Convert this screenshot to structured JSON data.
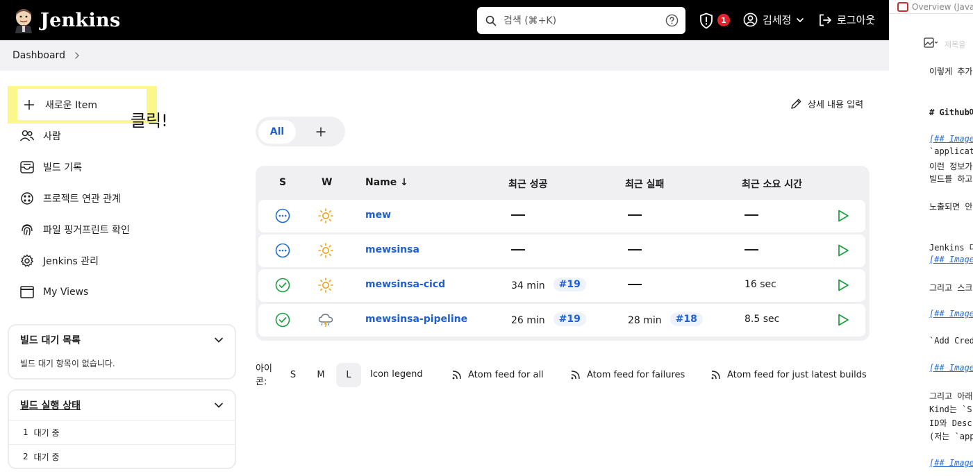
{
  "header": {
    "brand": "Jenkins",
    "search_placeholder": "검색 (⌘+K)",
    "security_badge": "1",
    "user_name": "김세정",
    "logout_label": "로그아웃"
  },
  "breadcrumb": {
    "items": [
      "Dashboard"
    ]
  },
  "sidebar": {
    "items": [
      {
        "label": "새로운 Item",
        "icon": "plus-icon"
      },
      {
        "label": "사람",
        "icon": "people-icon"
      },
      {
        "label": "빌드 기록",
        "icon": "inbox-icon"
      },
      {
        "label": "프로젝트 연관 관계",
        "icon": "relation-icon"
      },
      {
        "label": "파일 핑거프린트 확인",
        "icon": "fingerprint-icon"
      },
      {
        "label": "Jenkins 관리",
        "icon": "gear-icon"
      },
      {
        "label": "My Views",
        "icon": "window-icon"
      }
    ],
    "annotation": "클릭!",
    "build_queue": {
      "title": "빌드 대기 목록",
      "empty_text": "빌드 대기 항목이 없습니다."
    },
    "executors": {
      "title": "빌드 실행 상태",
      "rows": [
        {
          "index": "1",
          "status": "대기 중"
        },
        {
          "index": "2",
          "status": "대기 중"
        }
      ]
    }
  },
  "main": {
    "edit_description": "상세 내용 입력",
    "tabs": {
      "all": "All"
    },
    "columns": {
      "s": "S",
      "w": "W",
      "name": "Name ↓",
      "last_success": "최근 성공",
      "last_failure": "최근 실패",
      "last_duration": "최근 소요 시간"
    },
    "jobs": [
      {
        "status": "not-built",
        "weather": "sunny",
        "name": "mew",
        "success_time": "",
        "success_build": "",
        "failure_time": "",
        "failure_build": "",
        "duration": ""
      },
      {
        "status": "not-built",
        "weather": "sunny",
        "name": "mewsinsa",
        "success_time": "",
        "success_build": "",
        "failure_time": "",
        "failure_build": "",
        "duration": ""
      },
      {
        "status": "success",
        "weather": "sunny",
        "name": "mewsinsa-cicd",
        "success_time": "34 min",
        "success_build": "#19",
        "failure_time": "",
        "failure_build": "",
        "duration": "16 sec"
      },
      {
        "status": "success",
        "weather": "thunderstorm",
        "name": "mewsinsa-pipeline",
        "success_time": "26 min",
        "success_build": "#19",
        "failure_time": "28 min",
        "failure_build": "#18",
        "duration": "8.5 sec"
      }
    ],
    "footer": {
      "icon_label": "아이콘:",
      "sizes": [
        "S",
        "M",
        "L"
      ],
      "active_size": "L",
      "legend": "Icon legend",
      "feeds": [
        "Atom feed for all",
        "Atom feed for failures",
        "Atom feed for just latest builds"
      ]
    }
  },
  "editor": {
    "tab_title": "Overview (Java",
    "toolbar_placeholder": "제목을",
    "lines": [
      {
        "text": "이렇게 추가",
        "style": ""
      },
      {
        "text": "# Github에",
        "style": "bold"
      },
      {
        "text": "[## Image",
        "style": "link"
      },
      {
        "text": "`applicat",
        "style": ""
      },
      {
        "text": "이런 정보가",
        "style": ""
      },
      {
        "text": "빌드를 하고",
        "style": ""
      },
      {
        "text": "노출되면 안",
        "style": ""
      },
      {
        "text": "Jenkins 대",
        "style": ""
      },
      {
        "text": "[## Image",
        "style": "link"
      },
      {
        "text": "그리고 스크",
        "style": ""
      },
      {
        "text": "[## Image",
        "style": "link"
      },
      {
        "text": "`Add Cred",
        "style": ""
      },
      {
        "text": "[## Image",
        "style": "link"
      },
      {
        "text": "그리고 아래",
        "style": ""
      },
      {
        "text": "Kind는 `S",
        "style": ""
      },
      {
        "text": "ID와 Desc",
        "style": ""
      },
      {
        "text": "(저는 `app",
        "style": ""
      },
      {
        "text": "[## Image",
        "style": "link"
      }
    ]
  }
}
